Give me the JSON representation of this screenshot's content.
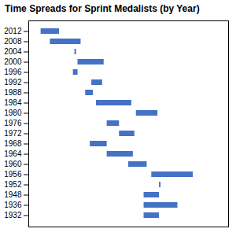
{
  "chart_data": {
    "type": "bar",
    "orientation": "horizontal",
    "title": "Time Spreads for Sprint Medalists (by Year)",
    "categories": [
      "2012",
      "2008",
      "2004",
      "2000",
      "1996",
      "1992",
      "1988",
      "1984",
      "1980",
      "1976",
      "1972",
      "1968",
      "1964",
      "1960",
      "1956",
      "1952",
      "1948",
      "1936",
      "1932"
    ],
    "values": [
      [
        9.63,
        9.75
      ],
      [
        9.69,
        9.89
      ],
      [
        9.85,
        9.86
      ],
      [
        9.87,
        10.04
      ],
      [
        9.84,
        9.87
      ],
      [
        9.96,
        10.03
      ],
      [
        9.92,
        9.97
      ],
      [
        9.99,
        10.22
      ],
      [
        10.25,
        10.39
      ],
      [
        10.06,
        10.14
      ],
      [
        10.14,
        10.24
      ],
      [
        9.95,
        10.06
      ],
      [
        10.06,
        10.23
      ],
      [
        10.2,
        10.32
      ],
      [
        10.35,
        10.62
      ],
      [
        10.4,
        10.41
      ],
      [
        10.3,
        10.4
      ],
      [
        10.3,
        10.52
      ],
      [
        10.3,
        10.4
      ]
    ],
    "color": "#4472c4",
    "xlim": [
      9.55,
      10.85
    ],
    "xticks": [],
    "grid": false,
    "tick_labels": "y"
  }
}
